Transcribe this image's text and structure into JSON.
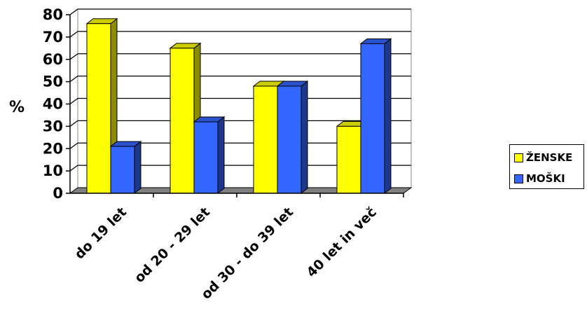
{
  "chart_data": {
    "type": "bar",
    "title": "",
    "xlabel": "",
    "ylabel": "%",
    "ylim": [
      0,
      80
    ],
    "yticks": [
      "0",
      "10",
      "20",
      "30",
      "40",
      "50",
      "60",
      "70",
      "80"
    ],
    "categories": [
      "do 19 let",
      "od 20 - 29 let",
      "od 30 - do 39 let",
      "40 let in več"
    ],
    "series": [
      {
        "name": "ŽENSKE",
        "values": [
          76,
          65,
          48,
          30
        ],
        "color": "#ffff00"
      },
      {
        "name": "MOŠKI",
        "values": [
          21,
          32,
          48,
          67
        ],
        "color": "#3366ff"
      }
    ],
    "grid": true,
    "three_d": true,
    "legend_position": "right"
  }
}
